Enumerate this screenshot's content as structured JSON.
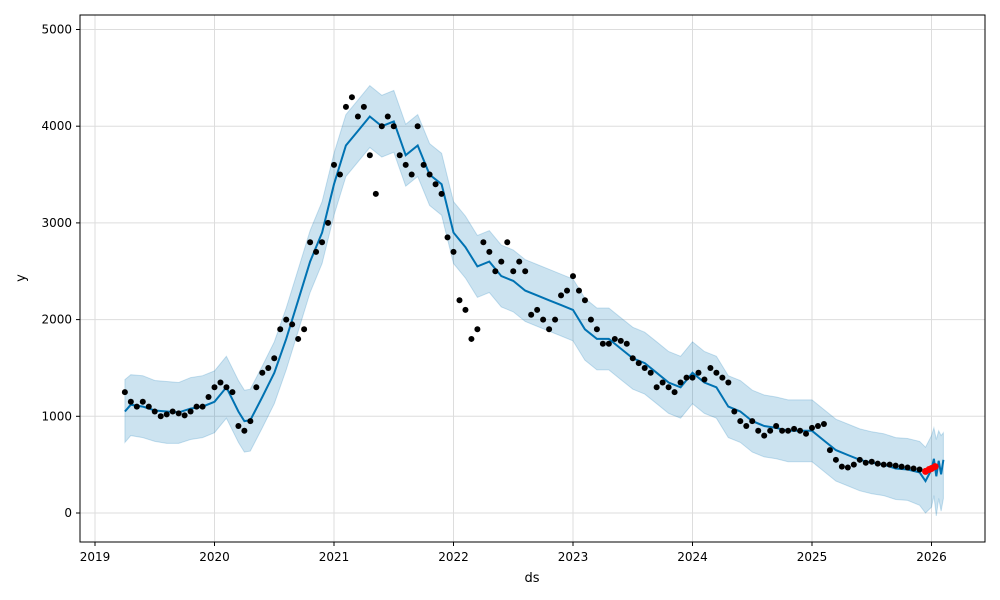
{
  "chart_data": {
    "type": "line",
    "title": "",
    "xlabel": "ds",
    "ylabel": "y",
    "xlim": [
      2018.87,
      2026.46
    ],
    "ylim": [
      -300,
      5160
    ],
    "grid": true,
    "xticks": [
      "2019",
      "2020",
      "2021",
      "2022",
      "2023",
      "2024",
      "2025",
      "2026"
    ],
    "xtick_values": [
      2019,
      2020,
      2021,
      2022,
      2023,
      2024,
      2025,
      2026
    ],
    "yticks": [
      "0",
      "1000",
      "2000",
      "3000",
      "4000",
      "5000"
    ],
    "ytick_values": [
      0,
      1000,
      2000,
      3000,
      4000,
      5000
    ],
    "colors": {
      "forecast": "#0072B2",
      "interval": "#0072B2",
      "actual": "#000000",
      "test": "#ff0000",
      "grid": "#dddddd"
    },
    "forecast": [
      [
        2019.25,
        1050,
        730,
        1380
      ],
      [
        2019.3,
        1120,
        800,
        1430
      ],
      [
        2019.4,
        1100,
        780,
        1420
      ],
      [
        2019.5,
        1060,
        740,
        1370
      ],
      [
        2019.6,
        1050,
        720,
        1360
      ],
      [
        2019.7,
        1040,
        720,
        1350
      ],
      [
        2019.8,
        1080,
        760,
        1400
      ],
      [
        2019.9,
        1100,
        780,
        1420
      ],
      [
        2020.0,
        1150,
        830,
        1470
      ],
      [
        2020.1,
        1300,
        980,
        1620
      ],
      [
        2020.2,
        1050,
        730,
        1370
      ],
      [
        2020.25,
        950,
        630,
        1270
      ],
      [
        2020.3,
        960,
        640,
        1280
      ],
      [
        2020.4,
        1200,
        880,
        1520
      ],
      [
        2020.5,
        1450,
        1130,
        1770
      ],
      [
        2020.6,
        1800,
        1480,
        2120
      ],
      [
        2020.7,
        2200,
        1880,
        2520
      ],
      [
        2020.8,
        2600,
        2280,
        2920
      ],
      [
        2020.9,
        2900,
        2580,
        3220
      ],
      [
        2021.0,
        3400,
        3080,
        3720
      ],
      [
        2021.1,
        3800,
        3480,
        4120
      ],
      [
        2021.2,
        3950,
        3630,
        4270
      ],
      [
        2021.3,
        4100,
        3780,
        4420
      ],
      [
        2021.4,
        4000,
        3680,
        4320
      ],
      [
        2021.5,
        4050,
        3730,
        4370
      ],
      [
        2021.6,
        3700,
        3380,
        4020
      ],
      [
        2021.7,
        3800,
        3480,
        4120
      ],
      [
        2021.8,
        3500,
        3180,
        3820
      ],
      [
        2021.9,
        3400,
        3080,
        3720
      ],
      [
        2022.0,
        2900,
        2580,
        3220
      ],
      [
        2022.1,
        2750,
        2430,
        3070
      ],
      [
        2022.2,
        2550,
        2230,
        2870
      ],
      [
        2022.3,
        2600,
        2280,
        2920
      ],
      [
        2022.4,
        2450,
        2130,
        2770
      ],
      [
        2022.5,
        2400,
        2080,
        2720
      ],
      [
        2022.6,
        2300,
        1980,
        2620
      ],
      [
        2022.7,
        2250,
        1930,
        2570
      ],
      [
        2022.8,
        2200,
        1880,
        2520
      ],
      [
        2022.9,
        2150,
        1830,
        2470
      ],
      [
        2023.0,
        2100,
        1780,
        2420
      ],
      [
        2023.1,
        1900,
        1580,
        2220
      ],
      [
        2023.2,
        1800,
        1480,
        2120
      ],
      [
        2023.3,
        1800,
        1480,
        2120
      ],
      [
        2023.4,
        1700,
        1380,
        2020
      ],
      [
        2023.5,
        1600,
        1280,
        1920
      ],
      [
        2023.6,
        1550,
        1230,
        1870
      ],
      [
        2023.7,
        1450,
        1130,
        1770
      ],
      [
        2023.8,
        1350,
        1030,
        1670
      ],
      [
        2023.9,
        1300,
        980,
        1620
      ],
      [
        2024.0,
        1450,
        1130,
        1770
      ],
      [
        2024.1,
        1350,
        1030,
        1670
      ],
      [
        2024.2,
        1300,
        980,
        1620
      ],
      [
        2024.3,
        1100,
        780,
        1420
      ],
      [
        2024.4,
        1050,
        730,
        1370
      ],
      [
        2024.5,
        950,
        630,
        1270
      ],
      [
        2024.6,
        900,
        580,
        1220
      ],
      [
        2024.7,
        880,
        560,
        1200
      ],
      [
        2024.8,
        850,
        530,
        1170
      ],
      [
        2024.9,
        850,
        530,
        1170
      ],
      [
        2025.0,
        850,
        530,
        1170
      ],
      [
        2025.1,
        750,
        430,
        1070
      ],
      [
        2025.2,
        650,
        330,
        970
      ],
      [
        2025.3,
        600,
        280,
        920
      ],
      [
        2025.4,
        550,
        230,
        870
      ],
      [
        2025.5,
        520,
        200,
        840
      ],
      [
        2025.6,
        500,
        180,
        820
      ],
      [
        2025.7,
        460,
        140,
        780
      ],
      [
        2025.8,
        450,
        130,
        770
      ],
      [
        2025.9,
        420,
        80,
        740
      ],
      [
        2025.95,
        330,
        0,
        680
      ],
      [
        2026.0,
        450,
        60,
        800
      ],
      [
        2026.02,
        560,
        180,
        880
      ],
      [
        2026.04,
        380,
        -30,
        760
      ],
      [
        2026.06,
        540,
        150,
        850
      ],
      [
        2026.08,
        400,
        20,
        800
      ],
      [
        2026.1,
        550,
        150,
        830
      ]
    ],
    "actual": [
      [
        2019.25,
        1250
      ],
      [
        2019.3,
        1150
      ],
      [
        2019.35,
        1100
      ],
      [
        2019.4,
        1150
      ],
      [
        2019.45,
        1100
      ],
      [
        2019.5,
        1050
      ],
      [
        2019.55,
        1000
      ],
      [
        2019.6,
        1020
      ],
      [
        2019.65,
        1050
      ],
      [
        2019.7,
        1030
      ],
      [
        2019.75,
        1010
      ],
      [
        2019.8,
        1050
      ],
      [
        2019.85,
        1100
      ],
      [
        2019.9,
        1100
      ],
      [
        2019.95,
        1200
      ],
      [
        2020.0,
        1300
      ],
      [
        2020.05,
        1350
      ],
      [
        2020.1,
        1300
      ],
      [
        2020.15,
        1250
      ],
      [
        2020.2,
        900
      ],
      [
        2020.25,
        850
      ],
      [
        2020.3,
        950
      ],
      [
        2020.35,
        1300
      ],
      [
        2020.4,
        1450
      ],
      [
        2020.45,
        1500
      ],
      [
        2020.5,
        1600
      ],
      [
        2020.55,
        1900
      ],
      [
        2020.6,
        2000
      ],
      [
        2020.65,
        1950
      ],
      [
        2020.7,
        1800
      ],
      [
        2020.75,
        1900
      ],
      [
        2020.8,
        2800
      ],
      [
        2020.85,
        2700
      ],
      [
        2020.9,
        2800
      ],
      [
        2020.95,
        3000
      ],
      [
        2021.0,
        3600
      ],
      [
        2021.05,
        3500
      ],
      [
        2021.1,
        4200
      ],
      [
        2021.15,
        4300
      ],
      [
        2021.2,
        4100
      ],
      [
        2021.25,
        4200
      ],
      [
        2021.3,
        3700
      ],
      [
        2021.35,
        3300
      ],
      [
        2021.4,
        4000
      ],
      [
        2021.45,
        4100
      ],
      [
        2021.5,
        4000
      ],
      [
        2021.55,
        3700
      ],
      [
        2021.6,
        3600
      ],
      [
        2021.65,
        3500
      ],
      [
        2021.7,
        4000
      ],
      [
        2021.75,
        3600
      ],
      [
        2021.8,
        3500
      ],
      [
        2021.85,
        3400
      ],
      [
        2021.9,
        3300
      ],
      [
        2021.95,
        2850
      ],
      [
        2022.0,
        2700
      ],
      [
        2022.05,
        2200
      ],
      [
        2022.1,
        2100
      ],
      [
        2022.15,
        1800
      ],
      [
        2022.2,
        1900
      ],
      [
        2022.25,
        2800
      ],
      [
        2022.3,
        2700
      ],
      [
        2022.35,
        2500
      ],
      [
        2022.4,
        2600
      ],
      [
        2022.45,
        2800
      ],
      [
        2022.5,
        2500
      ],
      [
        2022.55,
        2600
      ],
      [
        2022.6,
        2500
      ],
      [
        2022.65,
        2050
      ],
      [
        2022.7,
        2100
      ],
      [
        2022.75,
        2000
      ],
      [
        2022.8,
        1900
      ],
      [
        2022.85,
        2000
      ],
      [
        2022.9,
        2250
      ],
      [
        2022.95,
        2300
      ],
      [
        2023.0,
        2450
      ],
      [
        2023.05,
        2300
      ],
      [
        2023.1,
        2200
      ],
      [
        2023.15,
        2000
      ],
      [
        2023.2,
        1900
      ],
      [
        2023.25,
        1750
      ],
      [
        2023.3,
        1750
      ],
      [
        2023.35,
        1800
      ],
      [
        2023.4,
        1780
      ],
      [
        2023.45,
        1750
      ],
      [
        2023.5,
        1600
      ],
      [
        2023.55,
        1550
      ],
      [
        2023.6,
        1500
      ],
      [
        2023.65,
        1450
      ],
      [
        2023.7,
        1300
      ],
      [
        2023.75,
        1350
      ],
      [
        2023.8,
        1300
      ],
      [
        2023.85,
        1250
      ],
      [
        2023.9,
        1350
      ],
      [
        2023.95,
        1400
      ],
      [
        2024.0,
        1400
      ],
      [
        2024.05,
        1450
      ],
      [
        2024.1,
        1380
      ],
      [
        2024.15,
        1500
      ],
      [
        2024.2,
        1450
      ],
      [
        2024.25,
        1400
      ],
      [
        2024.3,
        1350
      ],
      [
        2024.35,
        1050
      ],
      [
        2024.4,
        950
      ],
      [
        2024.45,
        900
      ],
      [
        2024.5,
        950
      ],
      [
        2024.55,
        850
      ],
      [
        2024.6,
        800
      ],
      [
        2024.65,
        850
      ],
      [
        2024.7,
        900
      ],
      [
        2024.75,
        850
      ],
      [
        2024.8,
        850
      ],
      [
        2024.85,
        870
      ],
      [
        2024.9,
        850
      ],
      [
        2024.95,
        820
      ],
      [
        2025.0,
        880
      ],
      [
        2025.05,
        900
      ],
      [
        2025.1,
        920
      ],
      [
        2025.15,
        650
      ],
      [
        2025.2,
        550
      ],
      [
        2025.25,
        480
      ],
      [
        2025.3,
        470
      ],
      [
        2025.35,
        500
      ],
      [
        2025.4,
        550
      ],
      [
        2025.45,
        520
      ],
      [
        2025.5,
        530
      ],
      [
        2025.55,
        510
      ],
      [
        2025.6,
        500
      ],
      [
        2025.65,
        500
      ],
      [
        2025.7,
        490
      ],
      [
        2025.75,
        480
      ],
      [
        2025.8,
        470
      ],
      [
        2025.85,
        460
      ],
      [
        2025.9,
        450
      ]
    ],
    "test": [
      [
        2025.95,
        430
      ],
      [
        2025.98,
        450
      ],
      [
        2026.0,
        460
      ],
      [
        2026.03,
        480
      ]
    ]
  }
}
